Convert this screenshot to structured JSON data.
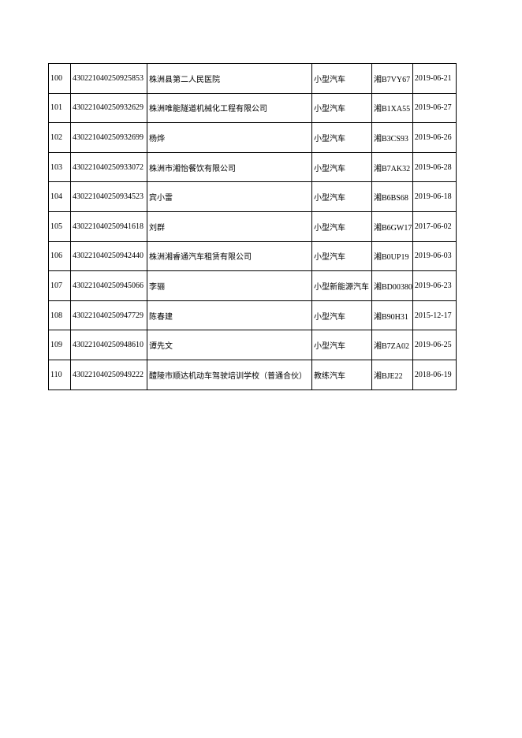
{
  "table": {
    "rows": [
      [
        "100",
        "430221040250925853",
        "株洲县第二人民医院",
        "小型汽车",
        "湘B7VY67",
        "2019-06-21"
      ],
      [
        "101",
        "430221040250932629",
        "株洲唯能隧道机械化工程有限公司",
        "小型汽车",
        "湘B1XA55",
        "2019-06-27"
      ],
      [
        "102",
        "430221040250932699",
        "杨烨",
        "小型汽车",
        "湘B3CS93",
        "2019-06-26"
      ],
      [
        "103",
        "430221040250933072",
        "株洲市湘怡餐饮有限公司",
        "小型汽车",
        "湘B7AK32",
        "2019-06-28"
      ],
      [
        "104",
        "430221040250934523",
        "宾小雷",
        "小型汽车",
        "湘B6BS68",
        "2019-06-18"
      ],
      [
        "105",
        "430221040250941618",
        "刘群",
        "小型汽车",
        "湘B6GW17",
        "2017-06-02"
      ],
      [
        "106",
        "430221040250942440",
        "株洲湘睿通汽车租赁有限公司",
        "小型汽车",
        "湘B0UP19",
        "2019-06-03"
      ],
      [
        "107",
        "430221040250945066",
        "李骊",
        "小型新能源汽车",
        "湘BD00380",
        "2019-06-23"
      ],
      [
        "108",
        "430221040250947729",
        "陈春建",
        "小型汽车",
        "湘B90H31",
        "2015-12-17"
      ],
      [
        "109",
        "430221040250948610",
        "谭先文",
        "小型汽车",
        "湘B7ZA02",
        "2019-06-25"
      ],
      [
        "110",
        "430221040250949222",
        "醴陵市顺达机动车驾驶培训学校（普通合伙）",
        "教练汽车",
        "湘BJE22",
        "2018-06-19"
      ]
    ]
  }
}
